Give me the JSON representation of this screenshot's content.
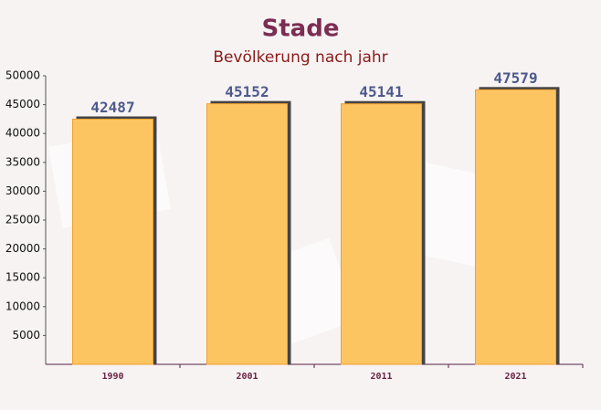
{
  "chart_data": {
    "type": "bar",
    "title": "Stade",
    "subtitle": "Bevölkerung nach jahr",
    "categories": [
      "1990",
      "2001",
      "2011",
      "2021"
    ],
    "values": [
      42487,
      45152,
      45141,
      47579
    ],
    "color": "#fdc462",
    "ylim": [
      0,
      50000
    ],
    "yticks": [
      5000,
      10000,
      15000,
      20000,
      25000,
      30000,
      35000,
      40000,
      45000,
      50000
    ],
    "grid": false
  }
}
